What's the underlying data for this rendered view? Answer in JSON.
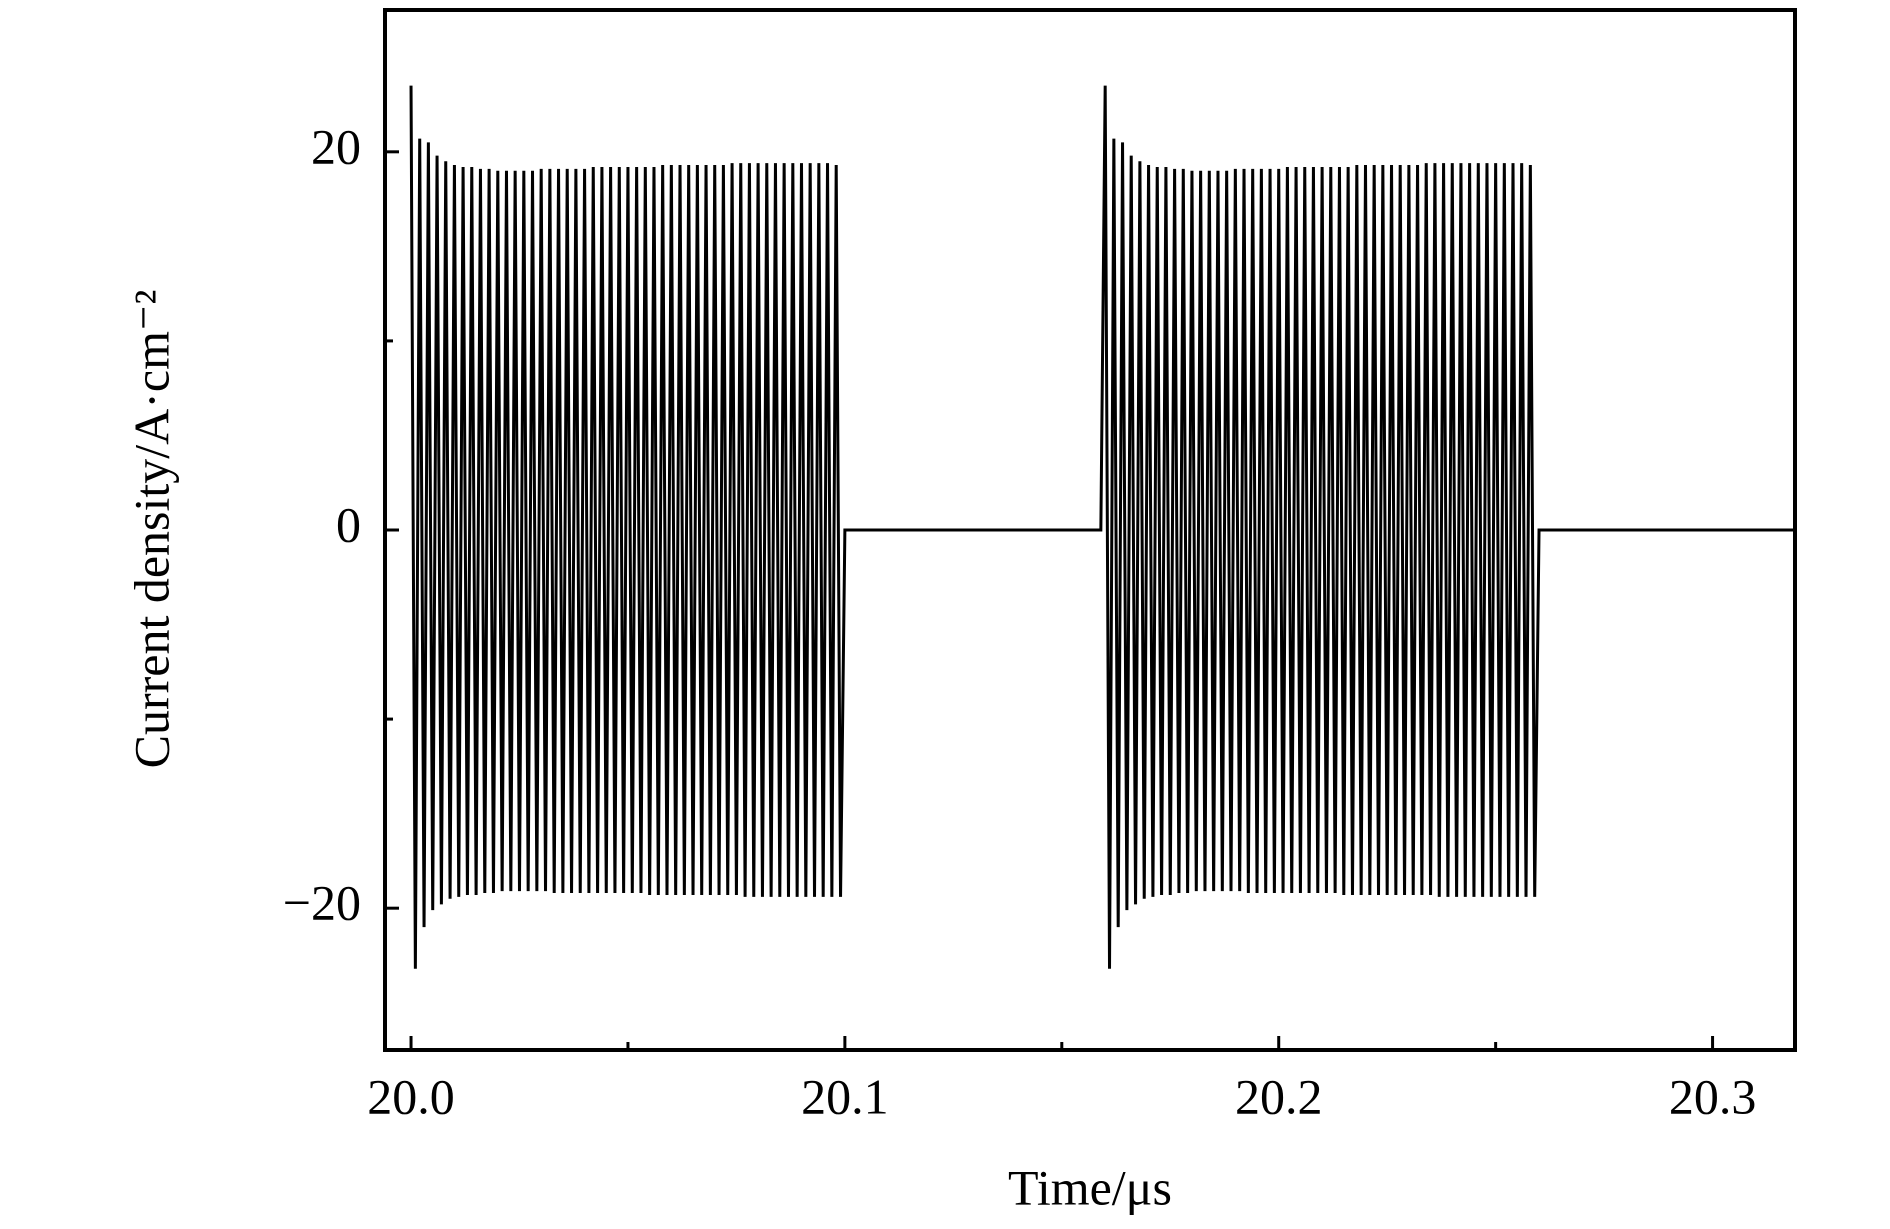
{
  "chart_data": {
    "type": "line",
    "x_label": "Time/μs",
    "y_label": "Current density/A·cm⁻²",
    "xlim": [
      19.994,
      20.319
    ],
    "ylim": [
      -27.5,
      27.5
    ],
    "xticks": [
      {
        "value": 20.0,
        "label": "20.0"
      },
      {
        "value": 20.1,
        "label": "20.1"
      },
      {
        "value": 20.2,
        "label": "20.2"
      },
      {
        "value": 20.3,
        "label": "20.3"
      }
    ],
    "xminorticks": [
      20.05,
      20.15,
      20.25
    ],
    "yticks": [
      {
        "value": -20,
        "label": "−20"
      },
      0,
      20
    ],
    "yminorticks": [
      -10,
      10
    ],
    "series": [
      {
        "name": "Current density",
        "color": "#000000",
        "x": [
          20.0,
          20.001,
          20.002,
          20.003,
          20.004,
          20.005,
          20.006,
          20.007,
          20.008,
          20.009,
          20.01,
          20.011,
          20.012,
          20.013,
          20.014,
          20.015,
          20.016,
          20.017,
          20.018,
          20.019,
          20.02,
          20.021,
          20.022,
          20.023,
          20.024,
          20.025,
          20.026,
          20.027,
          20.028,
          20.029,
          20.03,
          20.031,
          20.032,
          20.033,
          20.034,
          20.035,
          20.036,
          20.037,
          20.038,
          20.039,
          20.04,
          20.041,
          20.042,
          20.043,
          20.044,
          20.045,
          20.046,
          20.047,
          20.048,
          20.049,
          20.05,
          20.051,
          20.052,
          20.053,
          20.054,
          20.055,
          20.056,
          20.057,
          20.058,
          20.059,
          20.06,
          20.061,
          20.062,
          20.063,
          20.064,
          20.065,
          20.066,
          20.067,
          20.068,
          20.069,
          20.07,
          20.071,
          20.072,
          20.073,
          20.074,
          20.075,
          20.076,
          20.077,
          20.078,
          20.079,
          20.08,
          20.081,
          20.082,
          20.083,
          20.084,
          20.085,
          20.086,
          20.087,
          20.088,
          20.089,
          20.09,
          20.091,
          20.092,
          20.093,
          20.094,
          20.095,
          20.096,
          20.097,
          20.098,
          20.099,
          20.1,
          20.159,
          20.16,
          20.161,
          20.162,
          20.163,
          20.164,
          20.165,
          20.166,
          20.167,
          20.168,
          20.169,
          20.17,
          20.171,
          20.172,
          20.173,
          20.174,
          20.175,
          20.176,
          20.177,
          20.178,
          20.179,
          20.18,
          20.181,
          20.182,
          20.183,
          20.184,
          20.185,
          20.186,
          20.187,
          20.188,
          20.189,
          20.19,
          20.191,
          20.192,
          20.193,
          20.194,
          20.195,
          20.196,
          20.197,
          20.198,
          20.199,
          20.2,
          20.201,
          20.202,
          20.203,
          20.204,
          20.205,
          20.206,
          20.207,
          20.208,
          20.209,
          20.21,
          20.211,
          20.212,
          20.213,
          20.214,
          20.215,
          20.216,
          20.217,
          20.218,
          20.219,
          20.22,
          20.221,
          20.222,
          20.223,
          20.224,
          20.225,
          20.226,
          20.227,
          20.228,
          20.229,
          20.23,
          20.231,
          20.232,
          20.233,
          20.234,
          20.235,
          20.236,
          20.237,
          20.238,
          20.239,
          20.24,
          20.241,
          20.242,
          20.243,
          20.244,
          20.245,
          20.246,
          20.247,
          20.248,
          20.249,
          20.25,
          20.251,
          20.252,
          20.253,
          20.254,
          20.255,
          20.256,
          20.257,
          20.258,
          20.259,
          20.26,
          20.319
        ],
        "values": [
          23.5,
          -23.2,
          20.7,
          -21.0,
          20.5,
          -20.1,
          19.8,
          -19.8,
          19.5,
          -19.5,
          19.3,
          -19.4,
          19.2,
          -19.3,
          19.2,
          -19.3,
          19.1,
          -19.2,
          19.1,
          -19.2,
          19.0,
          -19.1,
          19.0,
          -19.1,
          19.0,
          -19.1,
          19.0,
          -19.1,
          19.0,
          -19.1,
          19.1,
          -19.1,
          19.1,
          -19.2,
          19.1,
          -19.2,
          19.1,
          -19.2,
          19.1,
          -19.2,
          19.1,
          -19.2,
          19.2,
          -19.2,
          19.2,
          -19.2,
          19.2,
          -19.2,
          19.2,
          -19.2,
          19.2,
          -19.2,
          19.2,
          -19.2,
          19.2,
          -19.3,
          19.2,
          -19.3,
          19.3,
          -19.3,
          19.3,
          -19.3,
          19.3,
          -19.3,
          19.3,
          -19.3,
          19.3,
          -19.3,
          19.3,
          -19.3,
          19.3,
          -19.3,
          19.3,
          -19.3,
          19.4,
          -19.3,
          19.4,
          -19.4,
          19.4,
          -19.4,
          19.4,
          -19.4,
          19.4,
          -19.4,
          19.4,
          -19.4,
          19.4,
          -19.4,
          19.4,
          -19.4,
          19.4,
          -19.4,
          19.4,
          -19.4,
          19.4,
          -19.4,
          19.4,
          -19.4,
          19.3,
          -19.4,
          0,
          0,
          23.5,
          -23.2,
          20.7,
          -21.0,
          20.5,
          -20.1,
          19.8,
          -19.8,
          19.5,
          -19.5,
          19.3,
          -19.4,
          19.2,
          -19.3,
          19.2,
          -19.3,
          19.1,
          -19.2,
          19.1,
          -19.2,
          19.0,
          -19.1,
          19.0,
          -19.1,
          19.0,
          -19.1,
          19.0,
          -19.1,
          19.0,
          -19.1,
          19.1,
          -19.1,
          19.1,
          -19.2,
          19.1,
          -19.2,
          19.1,
          -19.2,
          19.1,
          -19.2,
          19.1,
          -19.2,
          19.2,
          -19.2,
          19.2,
          -19.2,
          19.2,
          -19.2,
          19.2,
          -19.2,
          19.2,
          -19.2,
          19.2,
          -19.2,
          19.2,
          -19.3,
          19.2,
          -19.3,
          19.3,
          -19.3,
          19.3,
          -19.3,
          19.3,
          -19.3,
          19.3,
          -19.3,
          19.3,
          -19.3,
          19.3,
          -19.3,
          19.3,
          -19.3,
          19.3,
          -19.3,
          19.4,
          -19.3,
          19.4,
          -19.4,
          19.4,
          -19.4,
          19.4,
          -19.4,
          19.4,
          -19.4,
          19.4,
          -19.4,
          19.4,
          -19.4,
          19.4,
          -19.4,
          19.4,
          -19.4,
          19.4,
          -19.4,
          19.4,
          -19.4,
          19.4,
          -19.4,
          19.3,
          -19.4,
          0,
          0
        ]
      }
    ]
  }
}
